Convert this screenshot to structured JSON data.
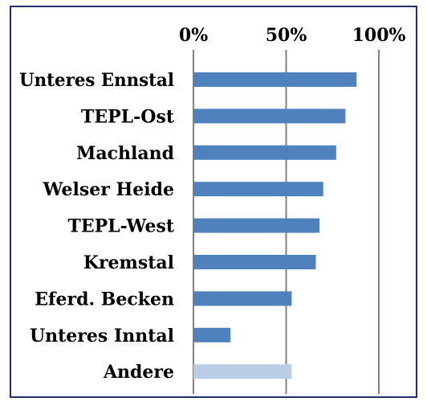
{
  "chart_data": {
    "type": "bar",
    "orientation": "horizontal",
    "x_axis_position": "top",
    "grid": true,
    "xlim": [
      0,
      100
    ],
    "x_ticks": [
      0,
      50,
      100
    ],
    "x_tick_labels": [
      "0%",
      "50%",
      "100%"
    ],
    "categories": [
      "Unteres Ennstal",
      "TEPL-Ost",
      "Machland",
      "Welser Heide",
      "TEPL-West",
      "Kremstal",
      "Eferd. Becken",
      "Unteres Inntal",
      "Andere"
    ],
    "values": [
      88,
      82,
      77,
      70,
      68,
      66,
      53,
      20,
      53
    ],
    "colors": [
      "#4f81bd",
      "#4f81bd",
      "#4f81bd",
      "#4f81bd",
      "#4f81bd",
      "#4f81bd",
      "#4f81bd",
      "#4f81bd",
      "#b9cde5"
    ],
    "grid_color": "#808080",
    "frame_color": "#1f2f6b"
  }
}
